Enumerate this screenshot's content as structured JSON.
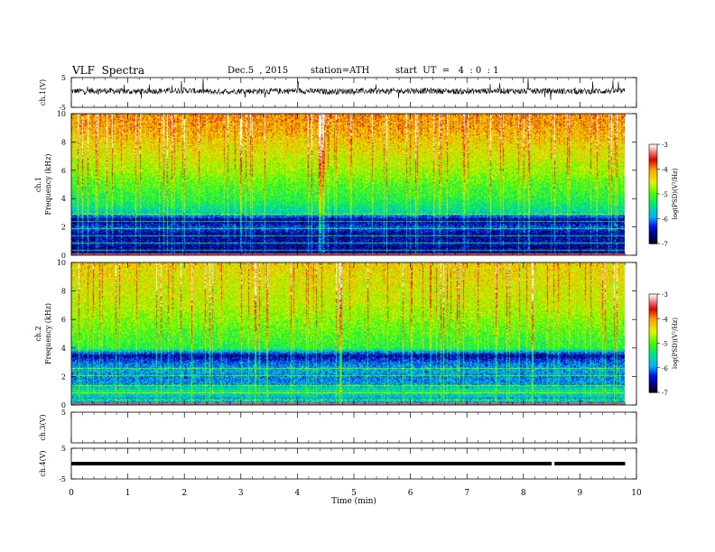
{
  "header": {
    "title": "VLF  Spectra",
    "date": "Dec.5  , 2015",
    "station": "station=ATH",
    "start": "start  UT  =   4  : 0  : 1"
  },
  "colors": {
    "spectrogram_low": "#000090",
    "spectrogram_mid": "#00ff60",
    "spectrogram_high": "#d00000",
    "trace": "#000000"
  },
  "chart_data": [
    {
      "id": "ch1-waveform",
      "type": "line",
      "ylabel": "ch.1(V)",
      "ylim": [
        -5,
        5
      ],
      "yticks": [
        "5",
        "-5"
      ],
      "description_values": {
        "baseline": 0.5,
        "noise_amplitude": 1.5
      },
      "x": [
        0,
        0.5,
        1,
        1.5,
        2,
        2.5,
        3,
        3.5,
        4,
        4.5,
        5,
        5.5,
        6,
        6.5,
        7,
        7.5,
        8,
        8.5,
        9,
        9.5,
        9.8
      ],
      "y": [
        0.4,
        0.6,
        0.3,
        0.5,
        0.7,
        0.2,
        0.5,
        0.4,
        0.6,
        0.3,
        0.5,
        0.4,
        0.6,
        0.5,
        0.3,
        0.6,
        0.4,
        0.5,
        0.3,
        0.5,
        0.4
      ]
    },
    {
      "id": "ch1-spectrogram",
      "type": "heatmap",
      "ylabel": "ch.1\nFrequency  (kHz)",
      "ylim": [
        0,
        10
      ],
      "yticks": [
        "0",
        "2",
        "4",
        "6",
        "8",
        "10"
      ],
      "xlim": [
        0,
        9.8
      ],
      "colorbar": {
        "label": "log(PSD)(V²/Hz)",
        "ticks": [
          "-3",
          "-4",
          "-5",
          "-6",
          "-7"
        ],
        "range": [
          -7,
          -3
        ]
      },
      "profile_khz": [
        0.5,
        1,
        1.5,
        2,
        2.5,
        3,
        4,
        5,
        6,
        7,
        8,
        9,
        10
      ],
      "profile_logpsd": [
        -6.6,
        -6.5,
        -6.6,
        -6.2,
        -6.7,
        -5.6,
        -5.2,
        -5.0,
        -4.7,
        -4.5,
        -4.3,
        -4.1,
        -4.0
      ]
    },
    {
      "id": "ch2-spectrogram",
      "type": "heatmap",
      "ylabel": "ch.2\nFrequency  (kHz)",
      "ylim": [
        0,
        10
      ],
      "yticks": [
        "0",
        "2",
        "4",
        "6",
        "8",
        "10"
      ],
      "xlim": [
        0,
        9.8
      ],
      "colorbar": {
        "label": "log(PSD)(V²/Hz)",
        "ticks": [
          "-3",
          "-4",
          "-5",
          "-6",
          "-7"
        ],
        "range": [
          -7,
          -3
        ]
      },
      "profile_khz": [
        0.5,
        1,
        1.5,
        2,
        2.5,
        3,
        3.5,
        4,
        5,
        6,
        7,
        8,
        9,
        10
      ],
      "profile_logpsd": [
        -5.8,
        -5.4,
        -5.9,
        -6.0,
        -5.8,
        -6.1,
        -6.6,
        -5.2,
        -5.0,
        -4.8,
        -4.6,
        -4.5,
        -4.4,
        -4.3
      ]
    },
    {
      "id": "ch3-waveform",
      "type": "line",
      "ylabel": "ch.3(V)",
      "ylim": [
        -5,
        5
      ],
      "yticks": [
        "5"
      ],
      "x": [],
      "y": []
    },
    {
      "id": "ch4-waveform",
      "type": "line",
      "ylabel": "ch.4(V)",
      "ylim": [
        -5,
        5
      ],
      "yticks": [
        "5",
        "-5"
      ],
      "x": [
        0,
        8.5,
        8.55,
        9.8
      ],
      "y": [
        0,
        0,
        0,
        0
      ]
    }
  ],
  "xaxis": {
    "label": "Time  (min)",
    "ticks": [
      "0",
      "1",
      "2",
      "3",
      "4",
      "5",
      "6",
      "7",
      "8",
      "9",
      "10"
    ],
    "range": [
      0,
      10
    ]
  }
}
